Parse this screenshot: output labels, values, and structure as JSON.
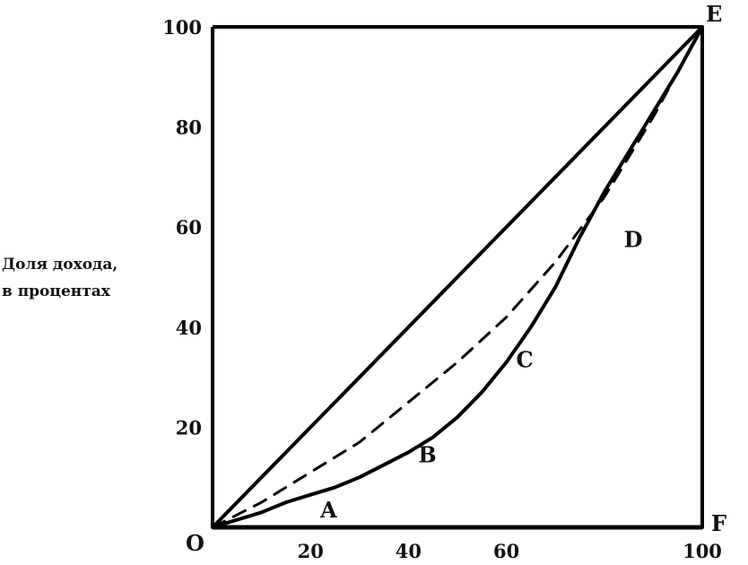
{
  "chart_data": {
    "type": "line",
    "title": "",
    "xlabel": "",
    "ylabel_lines": [
      "Доля дохода,",
      "в процентах"
    ],
    "xlim": [
      0,
      100
    ],
    "ylim": [
      0,
      100
    ],
    "x_ticks": [
      "20",
      "40",
      "60",
      "100"
    ],
    "y_ticks": [
      "100",
      "80",
      "60",
      "40",
      "20"
    ],
    "corner_labels": {
      "origin": "O",
      "top_right": "E",
      "bottom_right": "F"
    },
    "series": [
      {
        "style": "solid",
        "points": [
          [
            0,
            0
          ],
          [
            100,
            100
          ]
        ]
      },
      {
        "style": "dashed",
        "points": [
          [
            0,
            0
          ],
          [
            10,
            5
          ],
          [
            20,
            11
          ],
          [
            30,
            17
          ],
          [
            40,
            25
          ],
          [
            50,
            33
          ],
          [
            60,
            42
          ],
          [
            70,
            53
          ],
          [
            80,
            66
          ],
          [
            90,
            82
          ],
          [
            100,
            100
          ]
        ]
      },
      {
        "style": "solid",
        "points": [
          [
            0,
            0
          ],
          [
            5,
            1.5
          ],
          [
            10,
            3
          ],
          [
            15,
            5
          ],
          [
            20,
            6.5
          ],
          [
            25,
            8
          ],
          [
            30,
            10
          ],
          [
            35,
            12.5
          ],
          [
            40,
            15
          ],
          [
            45,
            18
          ],
          [
            50,
            22
          ],
          [
            55,
            27
          ],
          [
            60,
            33
          ],
          [
            65,
            40
          ],
          [
            70,
            48
          ],
          [
            75,
            58
          ],
          [
            80,
            67
          ],
          [
            85,
            75
          ],
          [
            90,
            83
          ],
          [
            95,
            91
          ],
          [
            100,
            100
          ]
        ]
      },
      {
        "style": "solid",
        "points": [
          [
            100,
            0
          ],
          [
            100,
            100
          ]
        ]
      }
    ],
    "point_labels": [
      {
        "text": "A",
        "x": 22,
        "y": 2
      },
      {
        "text": "B",
        "x": 42,
        "y": 13
      },
      {
        "text": "C",
        "x": 62,
        "y": 32
      },
      {
        "text": "D",
        "x": 84,
        "y": 56
      }
    ]
  }
}
